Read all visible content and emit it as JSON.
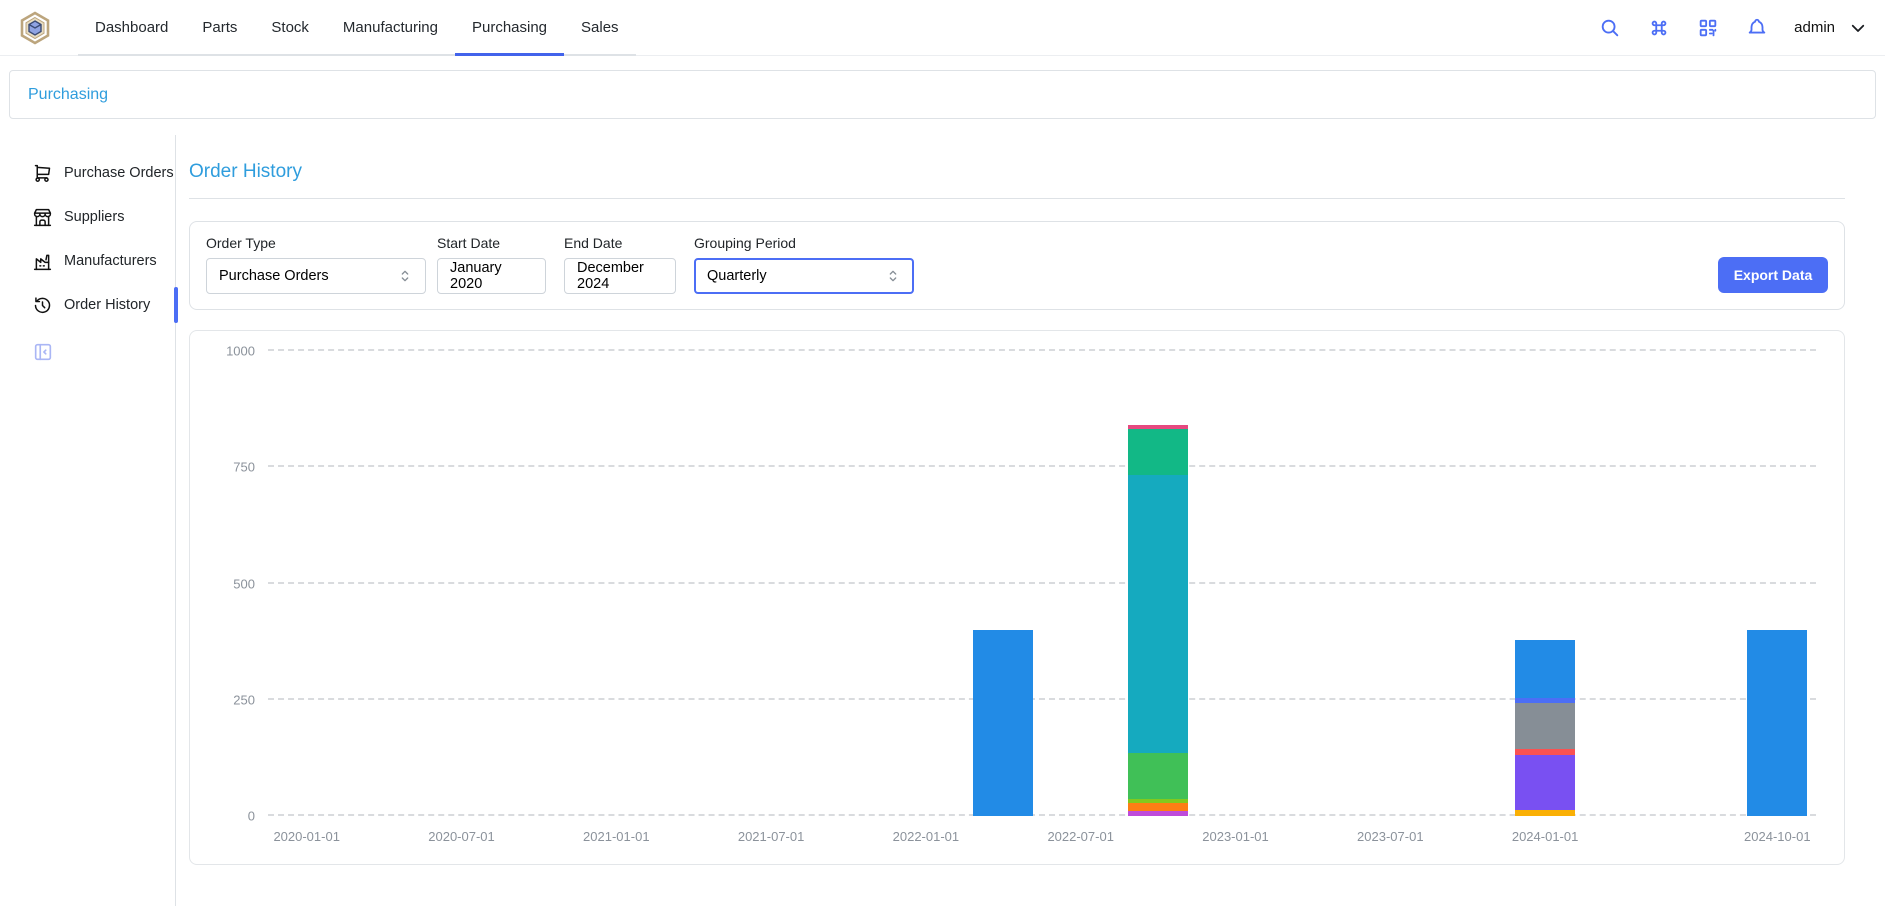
{
  "navbar": {
    "tabs": [
      {
        "label": "Dashboard"
      },
      {
        "label": "Parts"
      },
      {
        "label": "Stock"
      },
      {
        "label": "Manufacturing"
      },
      {
        "label": "Purchasing",
        "active": true
      },
      {
        "label": "Sales"
      }
    ],
    "username": "admin",
    "icons": [
      "search-icon",
      "command-icon",
      "qrcode-icon",
      "bell-icon"
    ]
  },
  "breadcrumb": {
    "items": [
      "Purchasing"
    ]
  },
  "sidebar": {
    "items": [
      {
        "label": "Purchase Orders",
        "icon": "shopping-cart-icon",
        "active": false
      },
      {
        "label": "Suppliers",
        "icon": "storefront-icon",
        "active": false
      },
      {
        "label": "Manufacturers",
        "icon": "factory-icon",
        "active": false
      },
      {
        "label": "Order History",
        "icon": "history-icon",
        "active": true
      }
    ]
  },
  "main": {
    "title": "Order History",
    "filters": {
      "order_type": {
        "label": "Order Type",
        "value": "Purchase Orders"
      },
      "start_date": {
        "label": "Start Date",
        "value": "January 2020"
      },
      "end_date": {
        "label": "End Date",
        "value": "December 2024"
      },
      "grouping": {
        "label": "Grouping Period",
        "value": "Quarterly"
      }
    },
    "export_label": "Export Data"
  },
  "colors": {
    "primary": "#4c6ef5",
    "link_blue": "#2f9ddd",
    "tab_underline": "#4263eb"
  },
  "chart_data": {
    "type": "stacked-bar",
    "title": "",
    "xlabel": "",
    "ylabel": "",
    "ylim": [
      0,
      1000
    ],
    "y_ticks": [
      0,
      250,
      500,
      750,
      1000
    ],
    "grid": "dashed-horizontal",
    "legend": "none",
    "categories": [
      "2020-01-01",
      "2020-04-01",
      "2020-07-01",
      "2020-10-01",
      "2021-01-01",
      "2021-04-01",
      "2021-07-01",
      "2021-10-01",
      "2022-01-01",
      "2022-04-01",
      "2022-07-01",
      "2022-10-01",
      "2023-01-01",
      "2023-04-01",
      "2023-07-01",
      "2023-10-01",
      "2024-01-01",
      "2024-04-01",
      "2024-07-01",
      "2024-10-01"
    ],
    "x_ticks": [
      {
        "index": 0,
        "label": "2020-01-01"
      },
      {
        "index": 2,
        "label": "2020-07-01"
      },
      {
        "index": 4,
        "label": "2021-01-01"
      },
      {
        "index": 6,
        "label": "2021-07-01"
      },
      {
        "index": 8,
        "label": "2022-01-01"
      },
      {
        "index": 10,
        "label": "2022-07-01"
      },
      {
        "index": 12,
        "label": "2023-01-01"
      },
      {
        "index": 14,
        "label": "2023-07-01"
      },
      {
        "index": 16,
        "label": "2024-01-01"
      },
      {
        "index": 19,
        "label": "2024-10-01"
      }
    ],
    "bars": [
      {
        "category": "2022-04-01",
        "total": 400,
        "segments": [
          {
            "name": "blue",
            "color": "#228be6",
            "value": 400
          }
        ]
      },
      {
        "category": "2022-10-01",
        "total": 841,
        "segments": [
          {
            "name": "grape",
            "color": "#be4bdb",
            "value": 10
          },
          {
            "name": "orange",
            "color": "#fd7e14",
            "value": 17
          },
          {
            "name": "lime",
            "color": "#82c91e",
            "value": 9
          },
          {
            "name": "green",
            "color": "#40c057",
            "value": 100
          },
          {
            "name": "cyan",
            "color": "#15aabf",
            "value": 597
          },
          {
            "name": "teal",
            "color": "#12b886",
            "value": 100
          },
          {
            "name": "pink",
            "color": "#e64980",
            "value": 8
          }
        ]
      },
      {
        "category": "2024-01-01",
        "total": 379,
        "segments": [
          {
            "name": "yellow",
            "color": "#fab005",
            "value": 13
          },
          {
            "name": "violet",
            "color": "#7950f2",
            "value": 118
          },
          {
            "name": "red",
            "color": "#fa5252",
            "value": 14
          },
          {
            "name": "gray",
            "color": "#868e96",
            "value": 98
          },
          {
            "name": "indigo",
            "color": "#4c6ef5",
            "value": 11
          },
          {
            "name": "blue",
            "color": "#228be6",
            "value": 125
          }
        ]
      },
      {
        "category": "2024-10-01",
        "total": 400,
        "segments": [
          {
            "name": "blue",
            "color": "#228be6",
            "value": 400
          }
        ]
      }
    ]
  }
}
